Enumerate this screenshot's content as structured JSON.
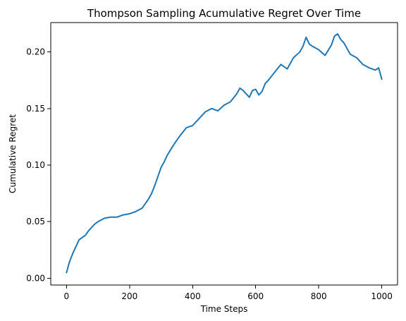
{
  "chart_data": {
    "type": "line",
    "title": "Thompson Sampling Acumulative Regret Over Time",
    "xlabel": "Time Steps",
    "ylabel": "Cumulative Regret",
    "xlim": [
      -50,
      1050
    ],
    "ylim": [
      -0.006,
      0.226
    ],
    "xticks": [
      0,
      200,
      400,
      600,
      800,
      1000
    ],
    "yticks": [
      0.0,
      0.05,
      0.1,
      0.15,
      0.2
    ],
    "xtick_labels": [
      "0",
      "200",
      "400",
      "600",
      "800",
      "1000"
    ],
    "ytick_labels": [
      "0.00",
      "0.05",
      "0.10",
      "0.15",
      "0.20"
    ],
    "grid": false,
    "legend": "none",
    "series": [
      {
        "color": "#1f77b4",
        "x": [
          0,
          10,
          20,
          30,
          40,
          50,
          60,
          70,
          80,
          90,
          100,
          120,
          140,
          160,
          180,
          200,
          220,
          240,
          250,
          260,
          270,
          280,
          290,
          300,
          310,
          320,
          340,
          360,
          380,
          400,
          420,
          440,
          460,
          480,
          500,
          520,
          540,
          550,
          560,
          570,
          580,
          590,
          600,
          610,
          620,
          630,
          640,
          660,
          680,
          700,
          720,
          740,
          750,
          760,
          770,
          780,
          800,
          820,
          840,
          850,
          860,
          870,
          880,
          900,
          920,
          940,
          960,
          980,
          990,
          1000
        ],
        "y": [
          0.005,
          0.015,
          0.022,
          0.028,
          0.034,
          0.036,
          0.038,
          0.042,
          0.045,
          0.048,
          0.05,
          0.053,
          0.054,
          0.054,
          0.056,
          0.057,
          0.059,
          0.062,
          0.066,
          0.07,
          0.075,
          0.082,
          0.09,
          0.098,
          0.103,
          0.109,
          0.118,
          0.126,
          0.133,
          0.135,
          0.141,
          0.147,
          0.15,
          0.148,
          0.153,
          0.156,
          0.163,
          0.168,
          0.166,
          0.163,
          0.16,
          0.166,
          0.167,
          0.162,
          0.165,
          0.172,
          0.175,
          0.182,
          0.189,
          0.185,
          0.195,
          0.2,
          0.205,
          0.213,
          0.207,
          0.205,
          0.202,
          0.197,
          0.206,
          0.214,
          0.216,
          0.211,
          0.208,
          0.198,
          0.195,
          0.189,
          0.186,
          0.184,
          0.186,
          0.176
        ]
      }
    ]
  }
}
